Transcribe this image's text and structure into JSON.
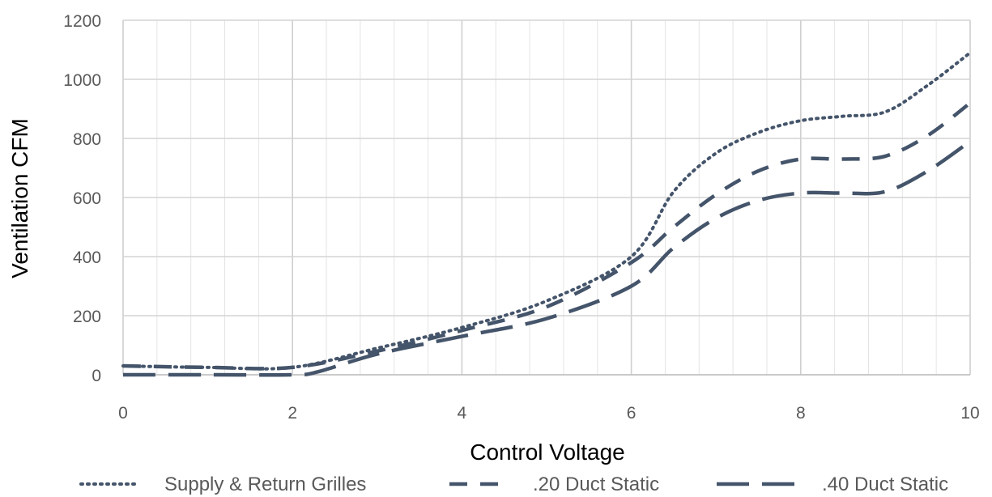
{
  "chart_data": {
    "type": "line",
    "xlabel": "Control Voltage",
    "ylabel": "Ventilation CFM",
    "xlim": [
      0,
      10
    ],
    "ylim": [
      0,
      1200
    ],
    "x_ticks": [
      "0",
      "2",
      "4",
      "6",
      "8",
      "10"
    ],
    "y_ticks": [
      "0",
      "200",
      "400",
      "600",
      "800",
      "1000",
      "1200"
    ],
    "grid": true,
    "legend_position": "bottom",
    "series": [
      {
        "name": "Supply & Return Grilles",
        "style": "dotted",
        "color": "#44546a",
        "x": [
          0,
          1,
          2,
          3,
          4,
          5,
          6,
          6.5,
          7,
          7.5,
          8,
          8.5,
          9,
          9.5,
          10
        ],
        "y": [
          30,
          25,
          25,
          90,
          160,
          250,
          400,
          620,
          750,
          820,
          860,
          875,
          890,
          980,
          1090
        ]
      },
      {
        "name": ".20 Duct Static",
        "style": "dashed",
        "color": "#44546a",
        "x": [
          0,
          1,
          2,
          3,
          4,
          5,
          6,
          6.5,
          7,
          7.5,
          8,
          8.5,
          9,
          9.5,
          10
        ],
        "y": [
          30,
          25,
          25,
          80,
          150,
          230,
          380,
          500,
          610,
          690,
          730,
          730,
          740,
          810,
          920
        ]
      },
      {
        "name": ".40 Duct Static",
        "style": "long-dashed",
        "color": "#44546a",
        "x": [
          0,
          1,
          2,
          2.3,
          3,
          4,
          5,
          6,
          6.5,
          7,
          7.5,
          8,
          8.5,
          9,
          9.5,
          10
        ],
        "y": [
          0,
          0,
          0,
          10,
          70,
          130,
          190,
          300,
          430,
          530,
          590,
          615,
          615,
          620,
          690,
          790
        ]
      }
    ]
  }
}
